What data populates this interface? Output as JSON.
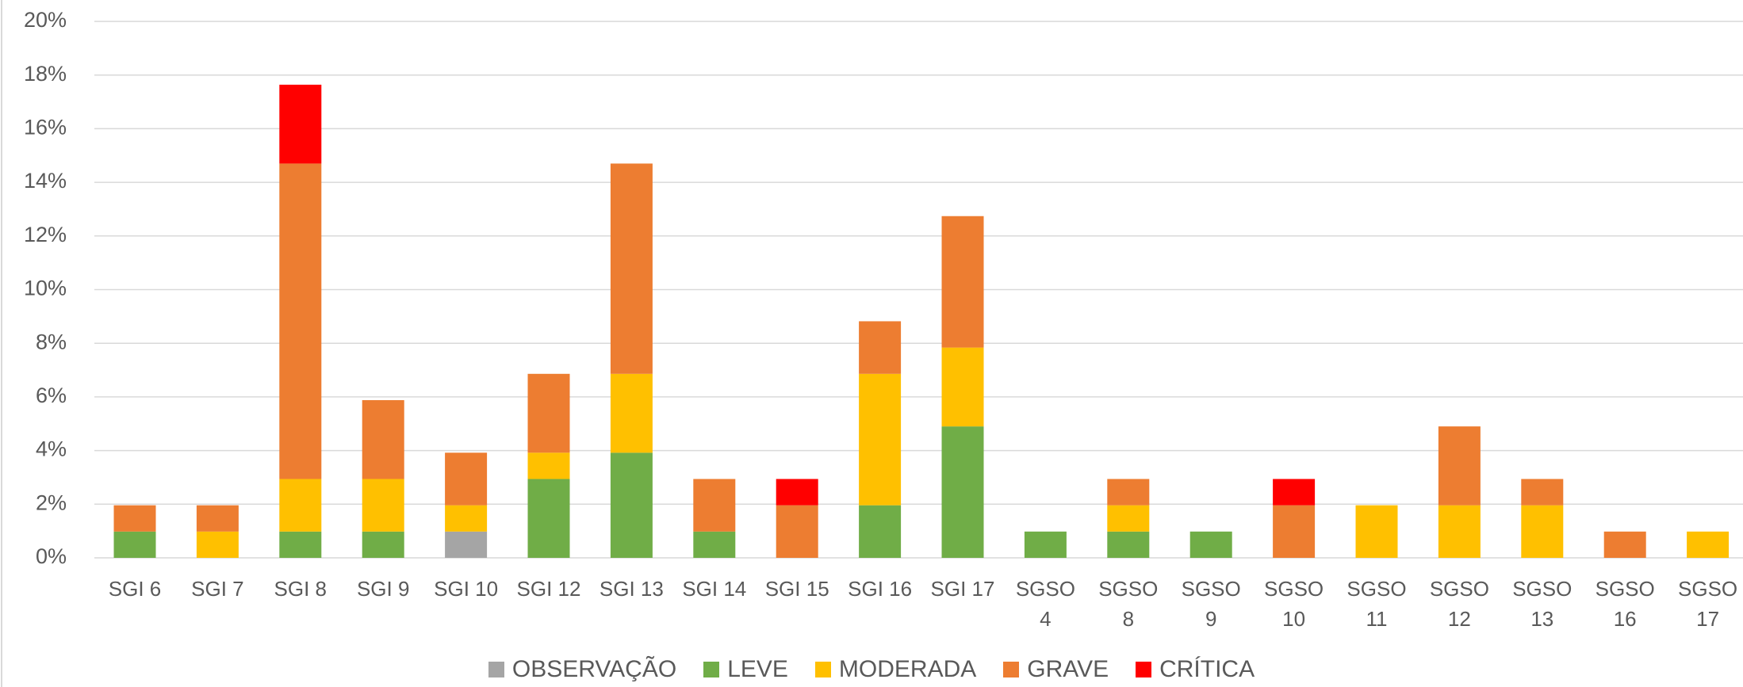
{
  "chart_data": {
    "type": "stacked_bar",
    "categories": [
      "SGI 6",
      "SGI 7",
      "SGI 8",
      "SGI 9",
      "SGI 10",
      "SGI 12",
      "SGI 13",
      "SGI 14",
      "SGI 15",
      "SGI 16",
      "SGI 17",
      "SGSO 4",
      "SGSO 8",
      "SGSO 9",
      "SGSO 10",
      "SGSO 11",
      "SGSO 12",
      "SGSO 13",
      "SGSO 16",
      "SGSO 17"
    ],
    "series": [
      {
        "name": "OBSERVAÇÃO",
        "color": "#a5a5a5",
        "values": [
          0,
          0,
          0,
          0,
          0.98,
          0,
          0,
          0,
          0,
          0,
          0,
          0,
          0,
          0,
          0,
          0,
          0,
          0,
          0,
          0
        ]
      },
      {
        "name": "LEVE",
        "color": "#70ad47",
        "values": [
          0.98,
          0,
          0.98,
          0.98,
          0,
          2.94,
          3.92,
          0.98,
          0,
          1.96,
          4.9,
          0.98,
          0.98,
          0.98,
          0,
          0,
          0,
          0,
          0,
          0
        ]
      },
      {
        "name": "MODERADA",
        "color": "#ffc000",
        "values": [
          0,
          0.98,
          1.96,
          1.96,
          0.98,
          0.98,
          2.94,
          0,
          0,
          4.9,
          2.94,
          0,
          0.98,
          0,
          0,
          1.96,
          1.96,
          1.96,
          0,
          0.98
        ]
      },
      {
        "name": "GRAVE",
        "color": "#ed7d31",
        "values": [
          0.98,
          0.98,
          11.76,
          2.94,
          1.96,
          2.94,
          7.84,
          1.96,
          1.96,
          1.96,
          4.9,
          0,
          0.98,
          0,
          1.96,
          0,
          2.94,
          0.98,
          0.98,
          0
        ]
      },
      {
        "name": "CRÍTICA",
        "color": "#ff0000",
        "values": [
          0,
          0,
          2.94,
          0,
          0,
          0,
          0,
          0,
          0.98,
          0,
          0,
          0,
          0,
          0,
          0.98,
          0,
          0,
          0,
          0,
          0
        ]
      }
    ],
    "ylim": [
      0,
      20
    ],
    "yticks": [
      {
        "value": 0,
        "label": "0%"
      },
      {
        "value": 2,
        "label": "2%"
      },
      {
        "value": 4,
        "label": "4%"
      },
      {
        "value": 6,
        "label": "6%"
      },
      {
        "value": 8,
        "label": "8%"
      },
      {
        "value": 10,
        "label": "10%"
      },
      {
        "value": 12,
        "label": "12%"
      },
      {
        "value": 14,
        "label": "14%"
      },
      {
        "value": 16,
        "label": "16%"
      },
      {
        "value": 18,
        "label": "18%"
      },
      {
        "value": 20,
        "label": "20%"
      }
    ],
    "grid": true,
    "legend": "bottom"
  }
}
